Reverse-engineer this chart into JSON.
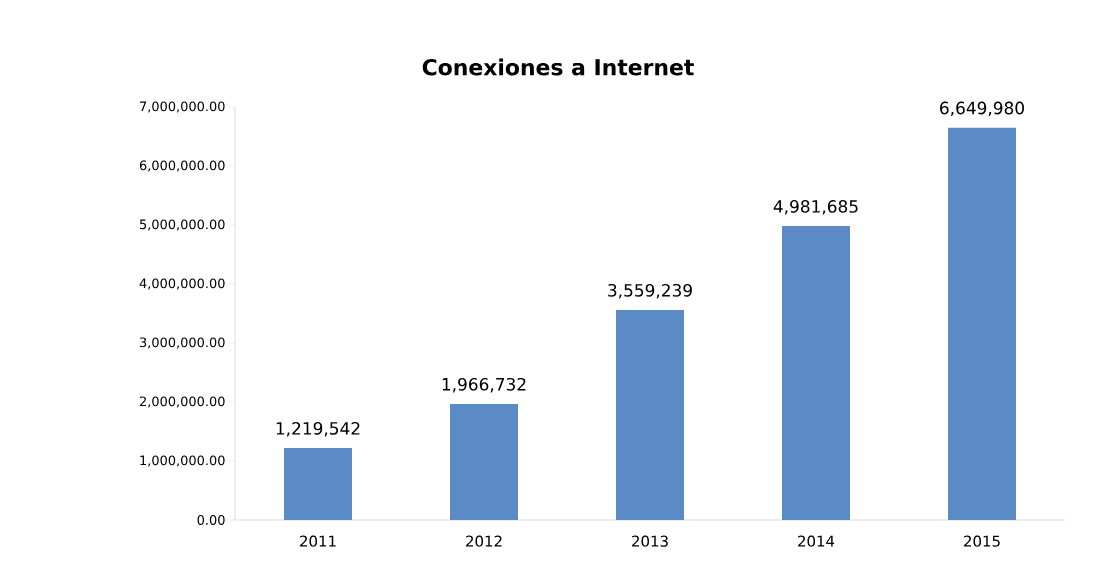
{
  "chart_data": {
    "type": "bar",
    "title": "Conexiones a Internet",
    "categories": [
      "2011",
      "2012",
      "2013",
      "2014",
      "2015"
    ],
    "values": [
      1219542,
      1966732,
      3559239,
      4981685,
      6649980
    ],
    "value_labels": [
      "1,219,542",
      "1,966,732",
      "3,559,239",
      "4,981,685",
      "6,649,980"
    ],
    "color": "#5b8bc6",
    "ylim": [
      0,
      7000000
    ],
    "yticks": [
      {
        "value": 0,
        "label": "0.00"
      },
      {
        "value": 1000000,
        "label": "1,000,000.00"
      },
      {
        "value": 2000000,
        "label": "2,000,000.00"
      },
      {
        "value": 3000000,
        "label": "3,000,000.00"
      },
      {
        "value": 4000000,
        "label": "4,000,000.00"
      },
      {
        "value": 5000000,
        "label": "5,000,000.00"
      },
      {
        "value": 6000000,
        "label": "6,000,000.00"
      },
      {
        "value": 7000000,
        "label": "7,000,000.00"
      }
    ],
    "grid": false
  }
}
